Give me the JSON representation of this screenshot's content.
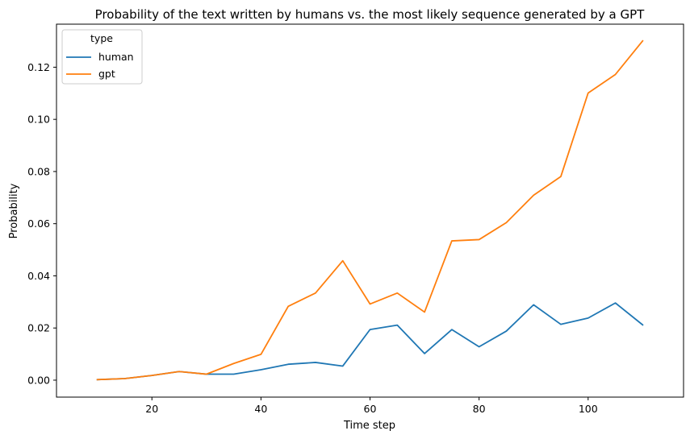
{
  "chart_data": {
    "type": "line",
    "title": "Probability of the text written by humans vs. the most likely sequence generated by a GPT",
    "xlabel": "Time step",
    "ylabel": "Probability",
    "xlim": [
      2.5,
      117.5
    ],
    "ylim": [
      -0.0065,
      0.1365
    ],
    "xticks": [
      20,
      40,
      60,
      80,
      100
    ],
    "yticks": [
      0.0,
      0.02,
      0.04,
      0.06,
      0.08,
      0.1,
      0.12
    ],
    "ytick_labels": [
      "0.00",
      "0.02",
      "0.04",
      "0.06",
      "0.08",
      "0.10",
      "0.12"
    ],
    "grid": false,
    "legend": {
      "title": "type",
      "placement": "top-left"
    },
    "x": [
      10,
      15,
      20,
      25,
      30,
      35,
      40,
      45,
      50,
      55,
      60,
      65,
      70,
      75,
      80,
      85,
      90,
      95,
      100,
      105,
      110
    ],
    "series": [
      {
        "name": "human",
        "color": "#1f77b4",
        "values": [
          0.0002,
          0.0006,
          0.0018,
          0.0033,
          0.0023,
          0.0023,
          0.004,
          0.0061,
          0.0068,
          0.0054,
          0.0194,
          0.0211,
          0.0102,
          0.0194,
          0.0128,
          0.0188,
          0.0289,
          0.0214,
          0.0238,
          0.0296,
          0.0212
        ]
      },
      {
        "name": "gpt",
        "color": "#ff7f0e",
        "values": [
          0.0002,
          0.0006,
          0.0018,
          0.0033,
          0.0023,
          0.0064,
          0.0099,
          0.0283,
          0.0334,
          0.0458,
          0.0292,
          0.0334,
          0.0261,
          0.0534,
          0.0539,
          0.0604,
          0.0709,
          0.0781,
          0.1101,
          0.1172,
          0.1301
        ]
      }
    ]
  }
}
